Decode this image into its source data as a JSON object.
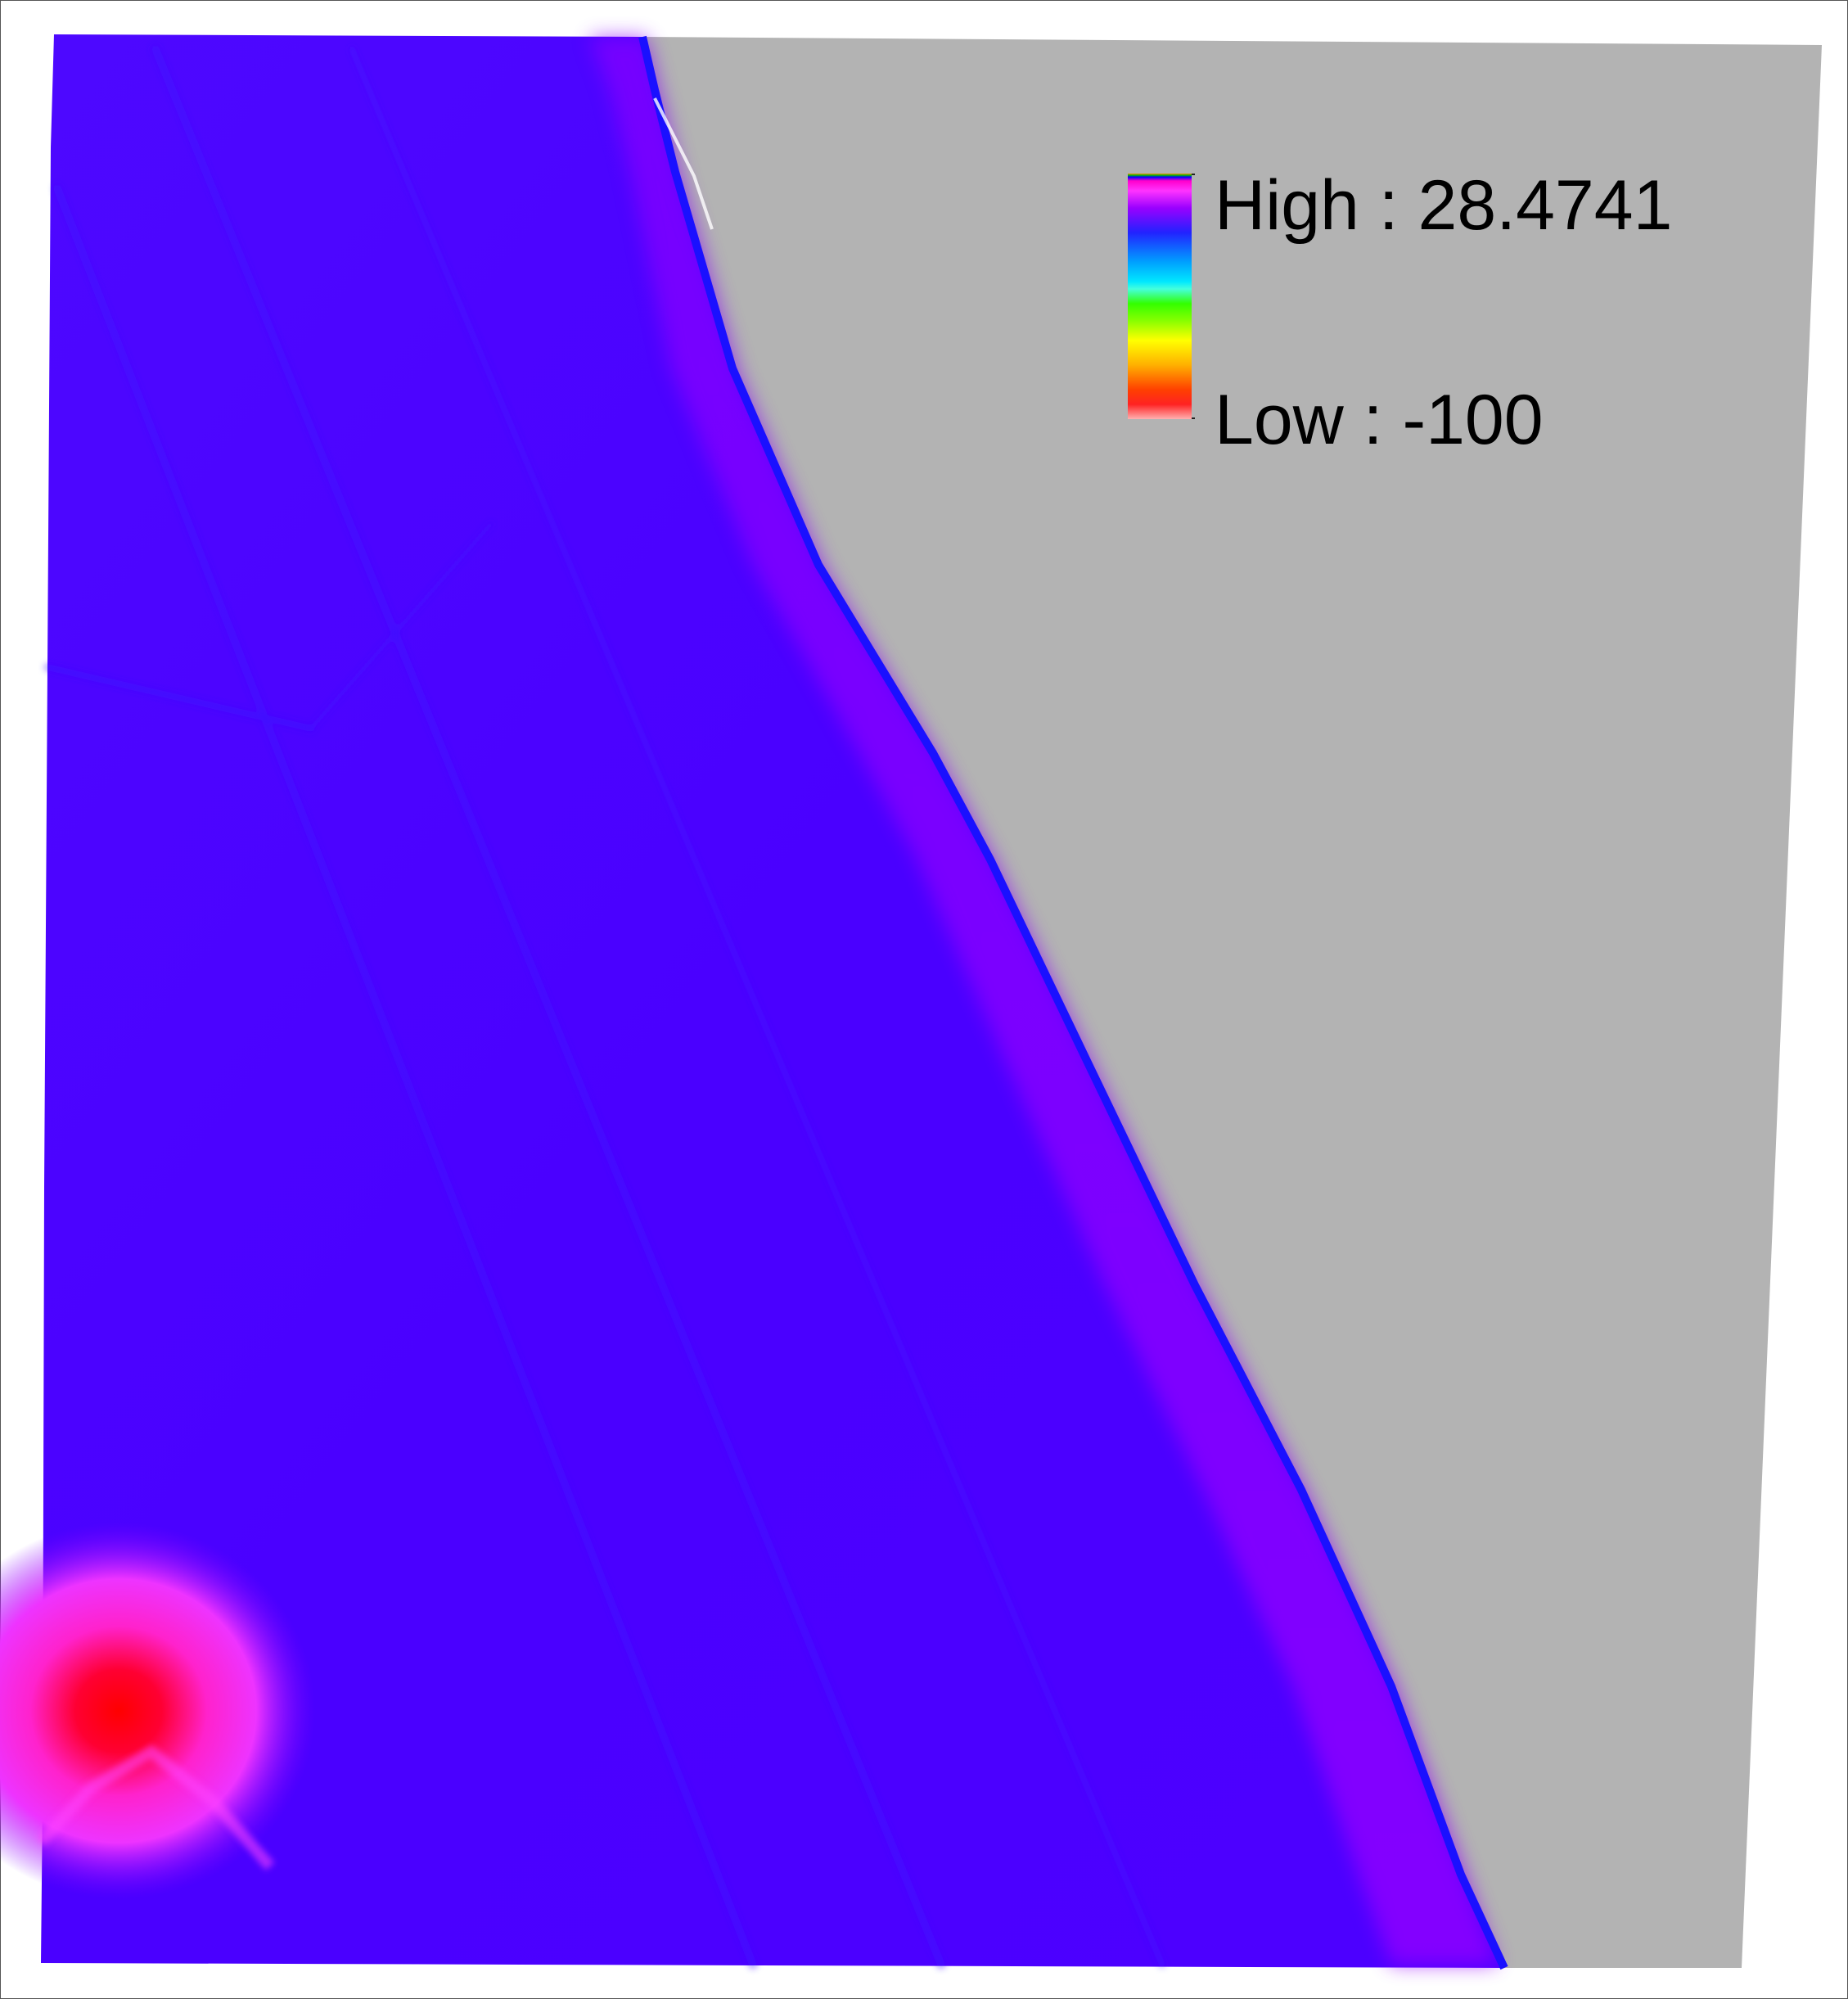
{
  "legend": {
    "high_label": "High : 28.4741",
    "low_label": "Low : -100",
    "high_value": 28.4741,
    "low_value": -100
  },
  "colors": {
    "nodata": "#b3b3b3",
    "surface_main": "#4a00ff",
    "ridge": "#9a00ff",
    "edge": "#1a10ff",
    "hotspot_core": "#ff0000",
    "hotspot_halo": "#ff33ff",
    "background": "#ffffff"
  }
}
